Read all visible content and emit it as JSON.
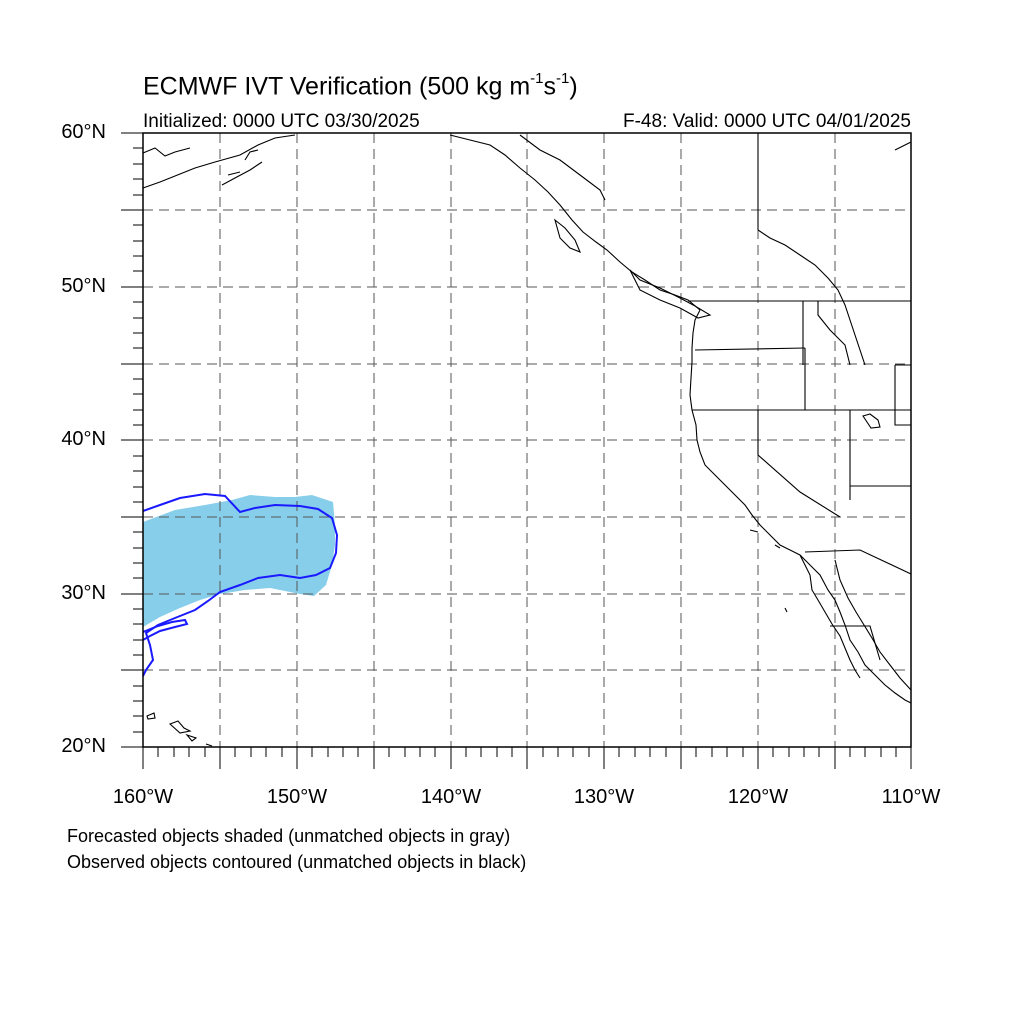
{
  "figure": {
    "title_prefix": "ECMWF IVT Verification (500 kg m",
    "title_exp1": "-1",
    "title_mid": "s",
    "title_exp2": "-1",
    "title_suffix": ")",
    "initialized": "Initialized: 0000 UTC 03/30/2025",
    "valid": "F-48: Valid: 0000 UTC 04/01/2025",
    "note_forecast": "Forecasted objects shaded (unmatched objects in gray)",
    "note_observed": "Observed objects contoured (unmatched objects in black)"
  },
  "axes": {
    "lat_labels": [
      "60°N",
      "50°N",
      "40°N",
      "30°N",
      "20°N"
    ],
    "lon_labels": [
      "160°W",
      "150°W",
      "140°W",
      "130°W",
      "120°W",
      "110°W"
    ],
    "lat_range": [
      20,
      60
    ],
    "lon_range": [
      -160,
      -110
    ],
    "grid_spacing_deg": 5,
    "grid": true
  },
  "colors": {
    "forecast_fill": "#87ceeb",
    "observed_contour": "#1a1aff",
    "coastline": "#000000",
    "grid": "#555555"
  },
  "objects": {
    "forecast_object": {
      "matched": true,
      "approx_lon_range": [
        -160,
        -147.5
      ],
      "approx_lat_range": [
        29.7,
        36.3
      ]
    },
    "observed_object": {
      "matched": true,
      "approx_lon_range": [
        -160,
        -147.3
      ],
      "approx_lat_range": [
        24.7,
        36.5
      ]
    }
  }
}
